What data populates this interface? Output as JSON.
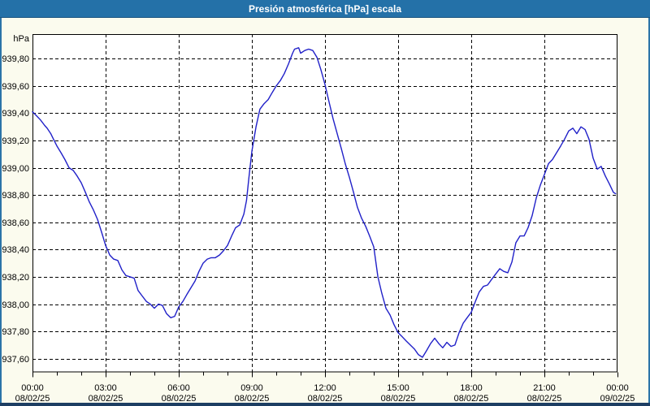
{
  "window": {
    "title": "Presión atmosférica [hPa] escala"
  },
  "colors": {
    "titlebar": "#2471A8",
    "titlebar_edge": "#1C5580",
    "frame_side": "#2B74A8",
    "frame_bottom": "#1D3E63",
    "background": "#FBFBEE",
    "plot_background": "#FFFFFF",
    "grid": "#000000",
    "axis_text": "#000000",
    "line": "#2020C8"
  },
  "chart_data": {
    "type": "line",
    "title": "Presión atmosférica [hPa] escala",
    "ylabel_unit": "hPa",
    "xlabel": "",
    "grid": "dashed",
    "legend": "none",
    "xlim": [
      0,
      24
    ],
    "ylim": [
      937.5,
      939.98
    ],
    "x_minor_tick_hours": 1,
    "y_ticks": [
      {
        "value": 939.8,
        "label": "939,80"
      },
      {
        "value": 939.6,
        "label": "939,60"
      },
      {
        "value": 939.4,
        "label": "939,40"
      },
      {
        "value": 939.2,
        "label": "939,20"
      },
      {
        "value": 939.0,
        "label": "939,00"
      },
      {
        "value": 938.8,
        "label": "938,80"
      },
      {
        "value": 938.6,
        "label": "938,60"
      },
      {
        "value": 938.4,
        "label": "938,40"
      },
      {
        "value": 938.2,
        "label": "938,20"
      },
      {
        "value": 938.0,
        "label": "938,00"
      },
      {
        "value": 937.8,
        "label": "937,80"
      },
      {
        "value": 937.6,
        "label": "937,60"
      }
    ],
    "x_ticks": [
      {
        "hour": 0,
        "time": "00:00",
        "date": "08/02/25"
      },
      {
        "hour": 3,
        "time": "03:00",
        "date": "08/02/25"
      },
      {
        "hour": 6,
        "time": "06:00",
        "date": "08/02/25"
      },
      {
        "hour": 9,
        "time": "09:00",
        "date": "08/02/25"
      },
      {
        "hour": 12,
        "time": "12:00",
        "date": "08/02/25"
      },
      {
        "hour": 15,
        "time": "15:00",
        "date": "08/02/25"
      },
      {
        "hour": 18,
        "time": "18:00",
        "date": "08/02/25"
      },
      {
        "hour": 21,
        "time": "21:00",
        "date": "08/02/25"
      },
      {
        "hour": 24,
        "time": "00:00",
        "date": "09/02/25"
      }
    ],
    "series": [
      {
        "name": "Presión atmosférica [hPa]",
        "color": "#2020C8",
        "points": [
          [
            0,
            939.41
          ],
          [
            0.17,
            939.38
          ],
          [
            0.33,
            939.35
          ],
          [
            0.5,
            939.31
          ],
          [
            0.6,
            939.29
          ],
          [
            0.75,
            939.25
          ],
          [
            0.83,
            939.22
          ],
          [
            1,
            939.16
          ],
          [
            1.17,
            939.11
          ],
          [
            1.33,
            939.06
          ],
          [
            1.5,
            939.0
          ],
          [
            1.67,
            938.98
          ],
          [
            1.83,
            938.94
          ],
          [
            2,
            938.89
          ],
          [
            2.17,
            938.82
          ],
          [
            2.33,
            938.75
          ],
          [
            2.5,
            938.69
          ],
          [
            2.67,
            938.62
          ],
          [
            2.83,
            938.53
          ],
          [
            3,
            938.43
          ],
          [
            3.17,
            938.36
          ],
          [
            3.33,
            938.33
          ],
          [
            3.5,
            938.32
          ],
          [
            3.67,
            938.25
          ],
          [
            3.83,
            938.21
          ],
          [
            4,
            938.2
          ],
          [
            4.17,
            938.19
          ],
          [
            4.33,
            938.1
          ],
          [
            4.5,
            938.06
          ],
          [
            4.67,
            938.02
          ],
          [
            4.83,
            938.0
          ],
          [
            5,
            937.97
          ],
          [
            5.17,
            938.0
          ],
          [
            5.33,
            937.99
          ],
          [
            5.5,
            937.93
          ],
          [
            5.67,
            937.9
          ],
          [
            5.83,
            937.91
          ],
          [
            6,
            937.98
          ],
          [
            6.17,
            938.02
          ],
          [
            6.33,
            938.07
          ],
          [
            6.5,
            938.12
          ],
          [
            6.67,
            938.17
          ],
          [
            6.83,
            938.24
          ],
          [
            7,
            938.3
          ],
          [
            7.17,
            938.33
          ],
          [
            7.33,
            938.34
          ],
          [
            7.5,
            938.34
          ],
          [
            7.67,
            938.36
          ],
          [
            7.83,
            938.39
          ],
          [
            8,
            938.43
          ],
          [
            8.17,
            938.5
          ],
          [
            8.33,
            938.56
          ],
          [
            8.5,
            938.58
          ],
          [
            8.67,
            938.66
          ],
          [
            8.78,
            938.76
          ],
          [
            8.88,
            938.93
          ],
          [
            9,
            939.12
          ],
          [
            9.17,
            939.3
          ],
          [
            9.33,
            939.43
          ],
          [
            9.5,
            939.47
          ],
          [
            9.67,
            939.5
          ],
          [
            9.83,
            939.55
          ],
          [
            10,
            939.6
          ],
          [
            10.17,
            939.64
          ],
          [
            10.33,
            939.69
          ],
          [
            10.5,
            939.76
          ],
          [
            10.67,
            939.84
          ],
          [
            10.75,
            939.87
          ],
          [
            10.92,
            939.88
          ],
          [
            11,
            939.84
          ],
          [
            11.17,
            939.86
          ],
          [
            11.33,
            939.87
          ],
          [
            11.5,
            939.86
          ],
          [
            11.67,
            939.81
          ],
          [
            11.83,
            939.72
          ],
          [
            12,
            939.61
          ],
          [
            12.17,
            939.48
          ],
          [
            12.33,
            939.36
          ],
          [
            12.5,
            939.25
          ],
          [
            12.67,
            939.14
          ],
          [
            12.83,
            939.03
          ],
          [
            13,
            938.93
          ],
          [
            13.17,
            938.82
          ],
          [
            13.33,
            938.71
          ],
          [
            13.5,
            938.63
          ],
          [
            13.67,
            938.57
          ],
          [
            13.83,
            938.5
          ],
          [
            14,
            938.42
          ],
          [
            14.17,
            938.2
          ],
          [
            14.33,
            938.08
          ],
          [
            14.5,
            937.97
          ],
          [
            14.67,
            937.92
          ],
          [
            14.83,
            937.85
          ],
          [
            15,
            937.79
          ],
          [
            15.17,
            937.76
          ],
          [
            15.33,
            937.73
          ],
          [
            15.5,
            937.7
          ],
          [
            15.67,
            937.67
          ],
          [
            15.83,
            937.63
          ],
          [
            16,
            937.61
          ],
          [
            16.17,
            937.66
          ],
          [
            16.33,
            937.71
          ],
          [
            16.5,
            937.75
          ],
          [
            16.67,
            937.71
          ],
          [
            16.83,
            937.68
          ],
          [
            17,
            937.72
          ],
          [
            17.17,
            937.69
          ],
          [
            17.33,
            937.7
          ],
          [
            17.5,
            937.79
          ],
          [
            17.67,
            937.86
          ],
          [
            17.83,
            937.9
          ],
          [
            18,
            937.94
          ],
          [
            18.17,
            938.02
          ],
          [
            18.33,
            938.09
          ],
          [
            18.5,
            938.13
          ],
          [
            18.67,
            938.14
          ],
          [
            18.83,
            938.18
          ],
          [
            19,
            938.22
          ],
          [
            19.17,
            938.26
          ],
          [
            19.33,
            938.24
          ],
          [
            19.5,
            938.23
          ],
          [
            19.67,
            938.31
          ],
          [
            19.83,
            938.45
          ],
          [
            20,
            938.5
          ],
          [
            20.17,
            938.5
          ],
          [
            20.33,
            938.56
          ],
          [
            20.5,
            938.65
          ],
          [
            20.67,
            938.78
          ],
          [
            20.83,
            938.87
          ],
          [
            21,
            938.95
          ],
          [
            21.17,
            939.03
          ],
          [
            21.33,
            939.06
          ],
          [
            21.5,
            939.11
          ],
          [
            21.67,
            939.16
          ],
          [
            21.83,
            939.21
          ],
          [
            22,
            939.27
          ],
          [
            22.17,
            939.29
          ],
          [
            22.33,
            939.25
          ],
          [
            22.5,
            939.3
          ],
          [
            22.67,
            939.28
          ],
          [
            22.83,
            939.21
          ],
          [
            23,
            939.07
          ],
          [
            23.17,
            938.99
          ],
          [
            23.33,
            939.01
          ],
          [
            23.5,
            938.94
          ],
          [
            23.67,
            938.88
          ],
          [
            23.83,
            938.82
          ],
          [
            23.92,
            938.81
          ]
        ]
      }
    ]
  }
}
